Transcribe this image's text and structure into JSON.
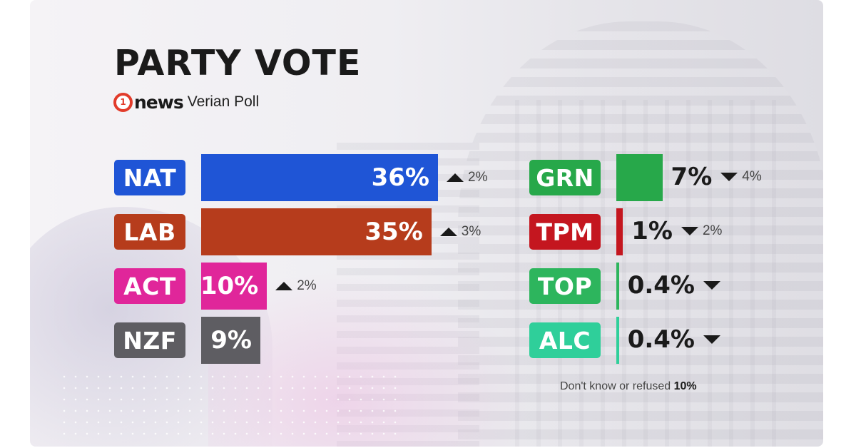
{
  "chart_data": {
    "type": "bar",
    "title": "PARTY VOTE",
    "subtitle": "Verian Poll",
    "source_brand": "news",
    "xlim": [
      0,
      36
    ],
    "categories": [
      "NAT",
      "LAB",
      "ACT",
      "NZF",
      "GRN",
      "TPM",
      "TOP",
      "ALC"
    ],
    "values": [
      36,
      35,
      10,
      9,
      7,
      1,
      0.4,
      0.4
    ],
    "value_labels": [
      "36%",
      "35%",
      "10%",
      "9%",
      "7%",
      "1%",
      "0.4%",
      "0.4%"
    ],
    "changes": [
      {
        "direction": "up",
        "label": "2%"
      },
      {
        "direction": "up",
        "label": "3%"
      },
      {
        "direction": "up",
        "label": "2%"
      },
      {
        "direction": "none",
        "label": ""
      },
      {
        "direction": "down",
        "label": "4%"
      },
      {
        "direction": "down",
        "label": "2%"
      },
      {
        "direction": "down",
        "label": ""
      },
      {
        "direction": "down",
        "label": ""
      }
    ],
    "colors": [
      "#1f55d6",
      "#b63c1c",
      "#e0269a",
      "#5e5d62",
      "#27a84a",
      "#c4161f",
      "#2db55d",
      "#2fcf9a"
    ],
    "footnote": {
      "text": "Don't know or refused",
      "value": "10%"
    }
  }
}
